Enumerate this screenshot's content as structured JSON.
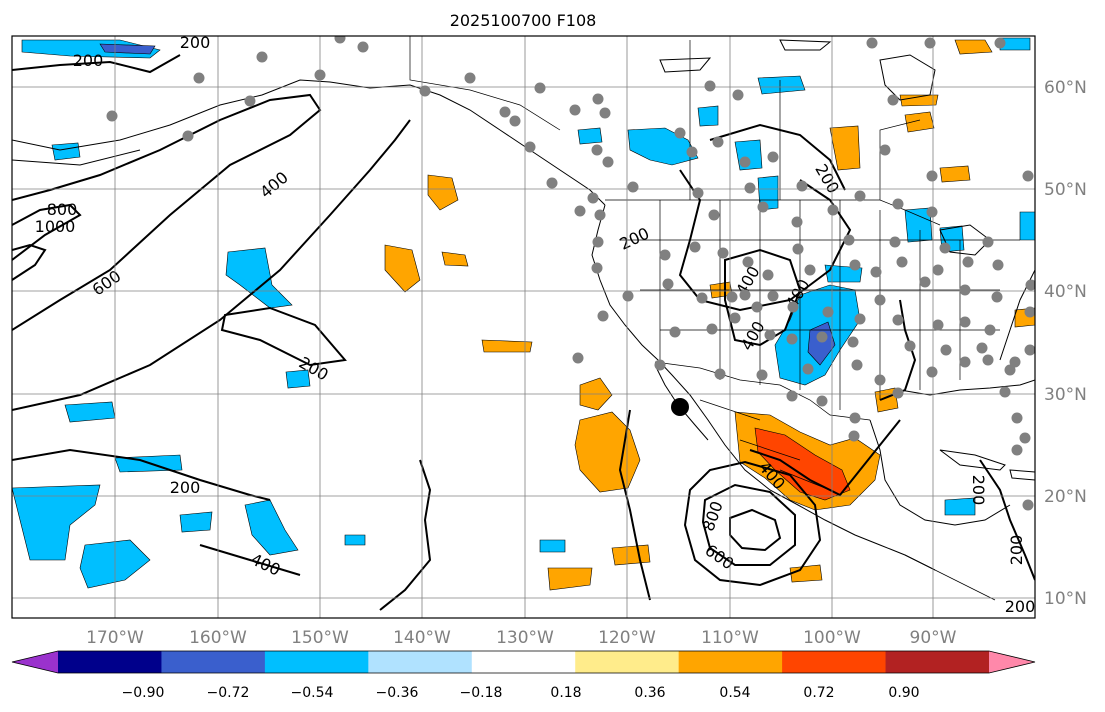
{
  "title": "2025100700 F108",
  "lon_ticks": [
    "170°W",
    "160°W",
    "150°W",
    "140°W",
    "130°W",
    "120°W",
    "110°W",
    "100°W",
    "90°W"
  ],
  "lat_ticks": [
    "60°N",
    "50°N",
    "40°N",
    "30°N",
    "20°N",
    "10°N"
  ],
  "contour_labels": [
    "200",
    "200",
    "200",
    "200",
    "200",
    "200",
    "200",
    "200",
    "200",
    "400",
    "400",
    "400",
    "400",
    "400",
    "400",
    "600",
    "600",
    "800",
    "800",
    "1000"
  ],
  "colorbar": {
    "colors": [
      "#9a32cd",
      "#00008b",
      "#3a5fcd",
      "#00bfff",
      "#b0e2ff",
      "#ffffff",
      "#ffec8b",
      "#ffa500",
      "#ff4500",
      "#b22222",
      "#ff88aa"
    ],
    "tick_labels": [
      "−0.90",
      "−0.72",
      "−0.54",
      "−0.36",
      "−0.18",
      "0.18",
      "0.36",
      "0.54",
      "0.72",
      "0.90"
    ]
  },
  "station_marker_color": "#808080",
  "highlight_marker_color": "#000000"
}
